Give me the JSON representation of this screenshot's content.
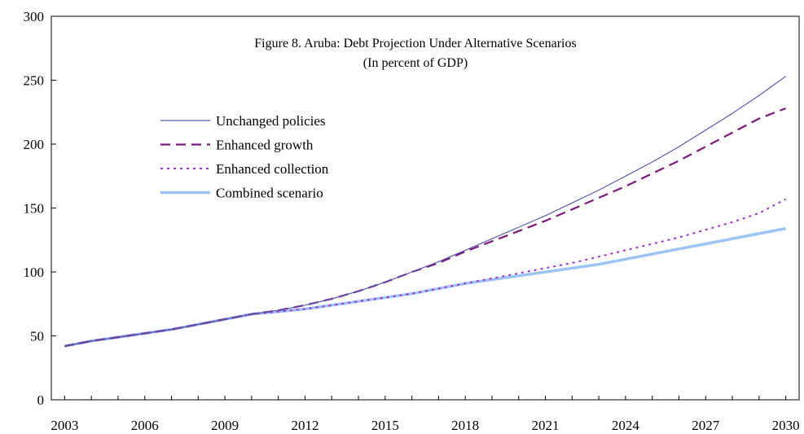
{
  "chart_data": {
    "type": "line",
    "title": "Figure 8. Aruba: Debt Projection Under Alternative Scenarios",
    "subtitle": "(In percent of GDP)",
    "xlabel": "",
    "ylabel": "",
    "xlim": [
      2002.5,
      2030.5
    ],
    "ylim": [
      0,
      300
    ],
    "y_ticks": [
      0,
      50,
      100,
      150,
      200,
      250,
      300
    ],
    "x_ticks": [
      2003,
      2006,
      2009,
      2012,
      2015,
      2018,
      2021,
      2024,
      2027,
      2030
    ],
    "grid": false,
    "legend_position": "upper-left",
    "series": [
      {
        "name": "Unchanged policies",
        "color": "#5a5ab4",
        "style": "solid",
        "x": [
          2003,
          2004,
          2005,
          2006,
          2007,
          2008,
          2009,
          2010,
          2011,
          2012,
          2013,
          2014,
          2015,
          2016,
          2017,
          2018,
          2019,
          2020,
          2021,
          2022,
          2023,
          2024,
          2025,
          2026,
          2027,
          2028,
          2029,
          2030
        ],
        "values": [
          42,
          46,
          49,
          52,
          55,
          59,
          63,
          67,
          70,
          74,
          79,
          85,
          92,
          100,
          108,
          117,
          126,
          135,
          144,
          154,
          164,
          175,
          186,
          198,
          211,
          224,
          238,
          253
        ]
      },
      {
        "name": "Enhanced growth",
        "color": "#7a1a7a",
        "style": "dashed",
        "x": [
          2003,
          2004,
          2005,
          2006,
          2007,
          2008,
          2009,
          2010,
          2011,
          2012,
          2013,
          2014,
          2015,
          2016,
          2017,
          2018,
          2019,
          2020,
          2021,
          2022,
          2023,
          2024,
          2025,
          2026,
          2027,
          2028,
          2029,
          2030
        ],
        "values": [
          42,
          46,
          49,
          52,
          55,
          59,
          63,
          67,
          70,
          74,
          79,
          85,
          92,
          100,
          107,
          116,
          124,
          132,
          140,
          149,
          158,
          167,
          177,
          187,
          198,
          209,
          220,
          228
        ]
      },
      {
        "name": "Enhanced collection",
        "color": "#a030d8",
        "style": "dotted",
        "x": [
          2003,
          2004,
          2005,
          2006,
          2007,
          2008,
          2009,
          2010,
          2011,
          2012,
          2013,
          2014,
          2015,
          2016,
          2017,
          2018,
          2019,
          2020,
          2021,
          2022,
          2023,
          2024,
          2025,
          2026,
          2027,
          2028,
          2029,
          2030
        ],
        "values": [
          42,
          46,
          49,
          52,
          55,
          59,
          63,
          67,
          69,
          71,
          74,
          77,
          80,
          83,
          87,
          91,
          95,
          99,
          103,
          107,
          112,
          117,
          122,
          127,
          133,
          139,
          146,
          157
        ]
      },
      {
        "name": "Combined scenario",
        "color": "#9cc4f4",
        "style": "thick",
        "x": [
          2003,
          2004,
          2005,
          2006,
          2007,
          2008,
          2009,
          2010,
          2011,
          2012,
          2013,
          2014,
          2015,
          2016,
          2017,
          2018,
          2019,
          2020,
          2021,
          2022,
          2023,
          2024,
          2025,
          2026,
          2027,
          2028,
          2029,
          2030
        ],
        "values": [
          42,
          46,
          49,
          52,
          55,
          59,
          63,
          67,
          69,
          71,
          74,
          77,
          80,
          83,
          87,
          91,
          94,
          97,
          100,
          103,
          106,
          110,
          114,
          118,
          122,
          126,
          130,
          134
        ]
      }
    ]
  }
}
